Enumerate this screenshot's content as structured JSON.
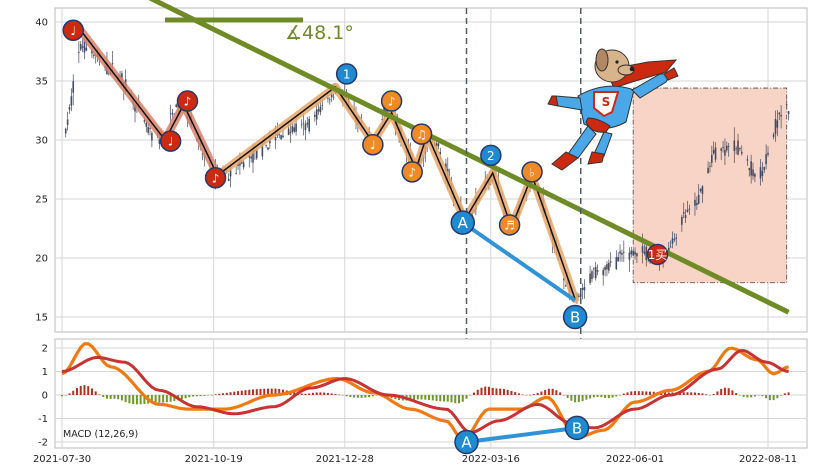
{
  "colors": {
    "panel_bg": "#ffffff",
    "grid": "#d6d6d6",
    "frame": "#bbbbbb",
    "candle_up": "#4a4a55",
    "candle_down": "#3b4a6b",
    "trend_line": "#6e8b26",
    "zigzag_shadow": "#d9836a",
    "zigzag_shadow_orange": "#e8a66a",
    "zigzag_line": "#111111",
    "red_marker": "#cc2a10",
    "orange_marker": "#f08a24",
    "blue_marker": "#1f8ad0",
    "divergence_line": "#2f93d6",
    "dashed_vline": "#4e5a6a",
    "target_box_fill": "#f8d4c6",
    "target_box_border": "#444444",
    "macd_fast": "#f07a12",
    "macd_slow": "#c83232",
    "hist_pos": "#b03020",
    "hist_neg": "#6e9a1e"
  },
  "annotation": {
    "angle_text": "∡48.1°"
  },
  "chart_data": [
    {
      "type": "candlestick",
      "name": "price",
      "x_ticks": [
        "2021-07-30",
        "2021-10-19",
        "2021-12-28",
        "2022-03-16",
        "2022-06-01",
        "2022-08-11"
      ],
      "x_range": [
        "2021-07-30",
        "2022-08-28"
      ],
      "y_ticks": [
        15,
        20,
        25,
        30,
        35,
        40
      ],
      "ylim": [
        13.5,
        41.5
      ],
      "grid": true,
      "anchor_points": [
        {
          "date": "2021-07-30",
          "close": 30
        },
        {
          "date": "2021-08-10",
          "close": 38
        },
        {
          "date": "2021-08-25",
          "close": 36
        },
        {
          "date": "2021-09-20",
          "close": 30
        },
        {
          "date": "2021-10-01",
          "close": 33
        },
        {
          "date": "2021-10-20",
          "close": 27
        },
        {
          "date": "2021-12-05",
          "close": 31
        },
        {
          "date": "2021-12-24",
          "close": 34
        },
        {
          "date": "2022-01-12",
          "close": 30
        },
        {
          "date": "2022-01-20",
          "close": 32.5
        },
        {
          "date": "2022-02-05",
          "close": 28
        },
        {
          "date": "2022-02-12",
          "close": 30
        },
        {
          "date": "2022-03-03",
          "close": 23.5
        },
        {
          "date": "2022-03-17",
          "close": 27
        },
        {
          "date": "2022-03-27",
          "close": 22.5
        },
        {
          "date": "2022-04-06",
          "close": 26.5
        },
        {
          "date": "2022-05-01",
          "close": 16.5
        },
        {
          "date": "2022-05-12",
          "close": 19
        },
        {
          "date": "2022-06-01",
          "close": 20.5
        },
        {
          "date": "2022-06-15",
          "close": 20
        },
        {
          "date": "2022-07-01",
          "close": 24
        },
        {
          "date": "2022-07-15",
          "close": 29
        },
        {
          "date": "2022-07-25",
          "close": 29.5
        },
        {
          "date": "2022-08-05",
          "close": 27
        },
        {
          "date": "2022-08-20",
          "close": 32.5
        }
      ],
      "trend_line": {
        "from": {
          "date": "2021-07-30",
          "value": 45.7
        },
        "to": {
          "date": "2022-08-22",
          "value": 15.4
        }
      },
      "zigzag": [
        {
          "date": "2021-08-08",
          "value": 39.5,
          "style": "red"
        },
        {
          "date": "2021-09-23",
          "value": 30.0,
          "style": "red"
        },
        {
          "date": "2021-10-03",
          "value": 33.0,
          "style": "red"
        },
        {
          "date": "2021-10-21",
          "value": 27.0,
          "style": "red"
        },
        {
          "date": "2021-12-23",
          "value": 34.5,
          "style": "orange"
        },
        {
          "date": "2022-01-12",
          "value": 29.8,
          "style": "orange"
        },
        {
          "date": "2022-01-22",
          "value": 32.3,
          "style": "orange"
        },
        {
          "date": "2022-02-04",
          "value": 27.5,
          "style": "orange"
        },
        {
          "date": "2022-02-10",
          "value": 30.5,
          "style": "orange"
        },
        {
          "date": "2022-03-02",
          "value": 23.2,
          "style": "orange"
        },
        {
          "date": "2022-03-17",
          "value": 27.2,
          "style": "orange"
        },
        {
          "date": "2022-03-27",
          "value": 22.6,
          "style": "orange"
        },
        {
          "date": "2022-04-07",
          "value": 27.0,
          "style": "orange"
        },
        {
          "date": "2022-04-30",
          "value": 16.5,
          "style": "orange"
        }
      ],
      "markers": [
        {
          "date": "2021-08-05",
          "value": 39.3,
          "style": "red",
          "label": "♩"
        },
        {
          "date": "2021-09-26",
          "value": 29.9,
          "style": "red",
          "label": "♩"
        },
        {
          "date": "2021-10-05",
          "value": 33.3,
          "style": "red",
          "label": "♪"
        },
        {
          "date": "2021-10-20",
          "value": 26.8,
          "style": "red",
          "label": "♪"
        },
        {
          "date": "2021-12-29",
          "value": 35.6,
          "style": "blue",
          "label": "1"
        },
        {
          "date": "2022-01-12",
          "value": 29.6,
          "style": "orange",
          "label": "♩"
        },
        {
          "date": "2022-01-22",
          "value": 33.3,
          "style": "orange",
          "label": "♪"
        },
        {
          "date": "2022-02-02",
          "value": 27.3,
          "style": "orange",
          "label": "♪"
        },
        {
          "date": "2022-02-07",
          "value": 30.5,
          "style": "orange",
          "label": "♫"
        },
        {
          "date": "2022-03-01",
          "value": 23.0,
          "style": "blue",
          "label": "A"
        },
        {
          "date": "2022-03-16",
          "value": 28.7,
          "style": "blue",
          "label": "2"
        },
        {
          "date": "2022-03-26",
          "value": 22.8,
          "style": "orange",
          "label": "♬"
        },
        {
          "date": "2022-04-07",
          "value": 27.3,
          "style": "orange",
          "label": "♭"
        },
        {
          "date": "2022-04-30",
          "value": 15.0,
          "style": "blue",
          "label": "B"
        },
        {
          "date": "2022-06-13",
          "value": 20.3,
          "style": "red",
          "label": "1买"
        }
      ],
      "divergence_line": {
        "from": {
          "date": "2022-03-01",
          "value": 23.0
        },
        "to": {
          "date": "2022-04-30",
          "value": 16.4
        }
      },
      "vlines": [
        "2022-03-03",
        "2022-05-03"
      ],
      "target_box": {
        "from_date": "2022-05-31",
        "to_date": "2022-08-21",
        "low": 17.9,
        "high": 34.4
      }
    },
    {
      "type": "line",
      "name": "MACD",
      "label": "MACD (12,26,9)",
      "y_ticks": [
        -2,
        -1,
        0,
        1,
        2
      ],
      "ylim": [
        -2.4,
        2.4
      ],
      "grid": true,
      "fast_anchors": [
        {
          "date": "2021-07-30",
          "value": 0.9
        },
        {
          "date": "2021-08-12",
          "value": 2.2
        },
        {
          "date": "2021-08-25",
          "value": 1.2
        },
        {
          "date": "2021-09-20",
          "value": -0.4
        },
        {
          "date": "2021-10-05",
          "value": -0.6
        },
        {
          "date": "2021-10-25",
          "value": -0.6
        },
        {
          "date": "2021-11-20",
          "value": 0.0
        },
        {
          "date": "2021-12-24",
          "value": 0.7
        },
        {
          "date": "2022-01-12",
          "value": 0.1
        },
        {
          "date": "2022-02-01",
          "value": -0.6
        },
        {
          "date": "2022-02-20",
          "value": -1.1
        },
        {
          "date": "2022-03-01",
          "value": -1.9
        },
        {
          "date": "2022-03-15",
          "value": -0.6
        },
        {
          "date": "2022-04-01",
          "value": -0.6
        },
        {
          "date": "2022-04-15",
          "value": -0.1
        },
        {
          "date": "2022-05-01",
          "value": -1.8
        },
        {
          "date": "2022-05-15",
          "value": -1.5
        },
        {
          "date": "2022-06-01",
          "value": -0.3
        },
        {
          "date": "2022-06-20",
          "value": 0.2
        },
        {
          "date": "2022-07-10",
          "value": 1.0
        },
        {
          "date": "2022-07-22",
          "value": 2.0
        },
        {
          "date": "2022-08-05",
          "value": 1.5
        },
        {
          "date": "2022-08-14",
          "value": 0.9
        },
        {
          "date": "2022-08-22",
          "value": 1.2
        }
      ],
      "slow_anchors": [
        {
          "date": "2021-07-30",
          "value": 1.0
        },
        {
          "date": "2021-08-18",
          "value": 1.6
        },
        {
          "date": "2021-09-01",
          "value": 1.4
        },
        {
          "date": "2021-09-20",
          "value": 0.2
        },
        {
          "date": "2021-10-10",
          "value": -0.5
        },
        {
          "date": "2021-10-30",
          "value": -0.8
        },
        {
          "date": "2021-11-20",
          "value": -0.5
        },
        {
          "date": "2021-12-10",
          "value": 0.3
        },
        {
          "date": "2021-12-28",
          "value": 0.7
        },
        {
          "date": "2022-01-20",
          "value": 0.0
        },
        {
          "date": "2022-02-20",
          "value": -0.6
        },
        {
          "date": "2022-03-05",
          "value": -1.6
        },
        {
          "date": "2022-03-20",
          "value": -1.1
        },
        {
          "date": "2022-04-10",
          "value": -0.4
        },
        {
          "date": "2022-04-28",
          "value": -1.2
        },
        {
          "date": "2022-05-10",
          "value": -1.4
        },
        {
          "date": "2022-06-01",
          "value": -0.6
        },
        {
          "date": "2022-06-20",
          "value": 0.0
        },
        {
          "date": "2022-07-15",
          "value": 1.1
        },
        {
          "date": "2022-07-28",
          "value": 1.9
        },
        {
          "date": "2022-08-10",
          "value": 1.4
        },
        {
          "date": "2022-08-22",
          "value": 1.0
        }
      ],
      "markers": [
        {
          "date": "2022-03-03",
          "value": -2.0,
          "label": "A"
        },
        {
          "date": "2022-05-01",
          "value": -1.4,
          "label": "B"
        }
      ],
      "divergence_line": {
        "from": {
          "date": "2022-03-03",
          "value": -2.0
        },
        "to": {
          "date": "2022-05-01",
          "value": -1.4
        }
      }
    }
  ]
}
